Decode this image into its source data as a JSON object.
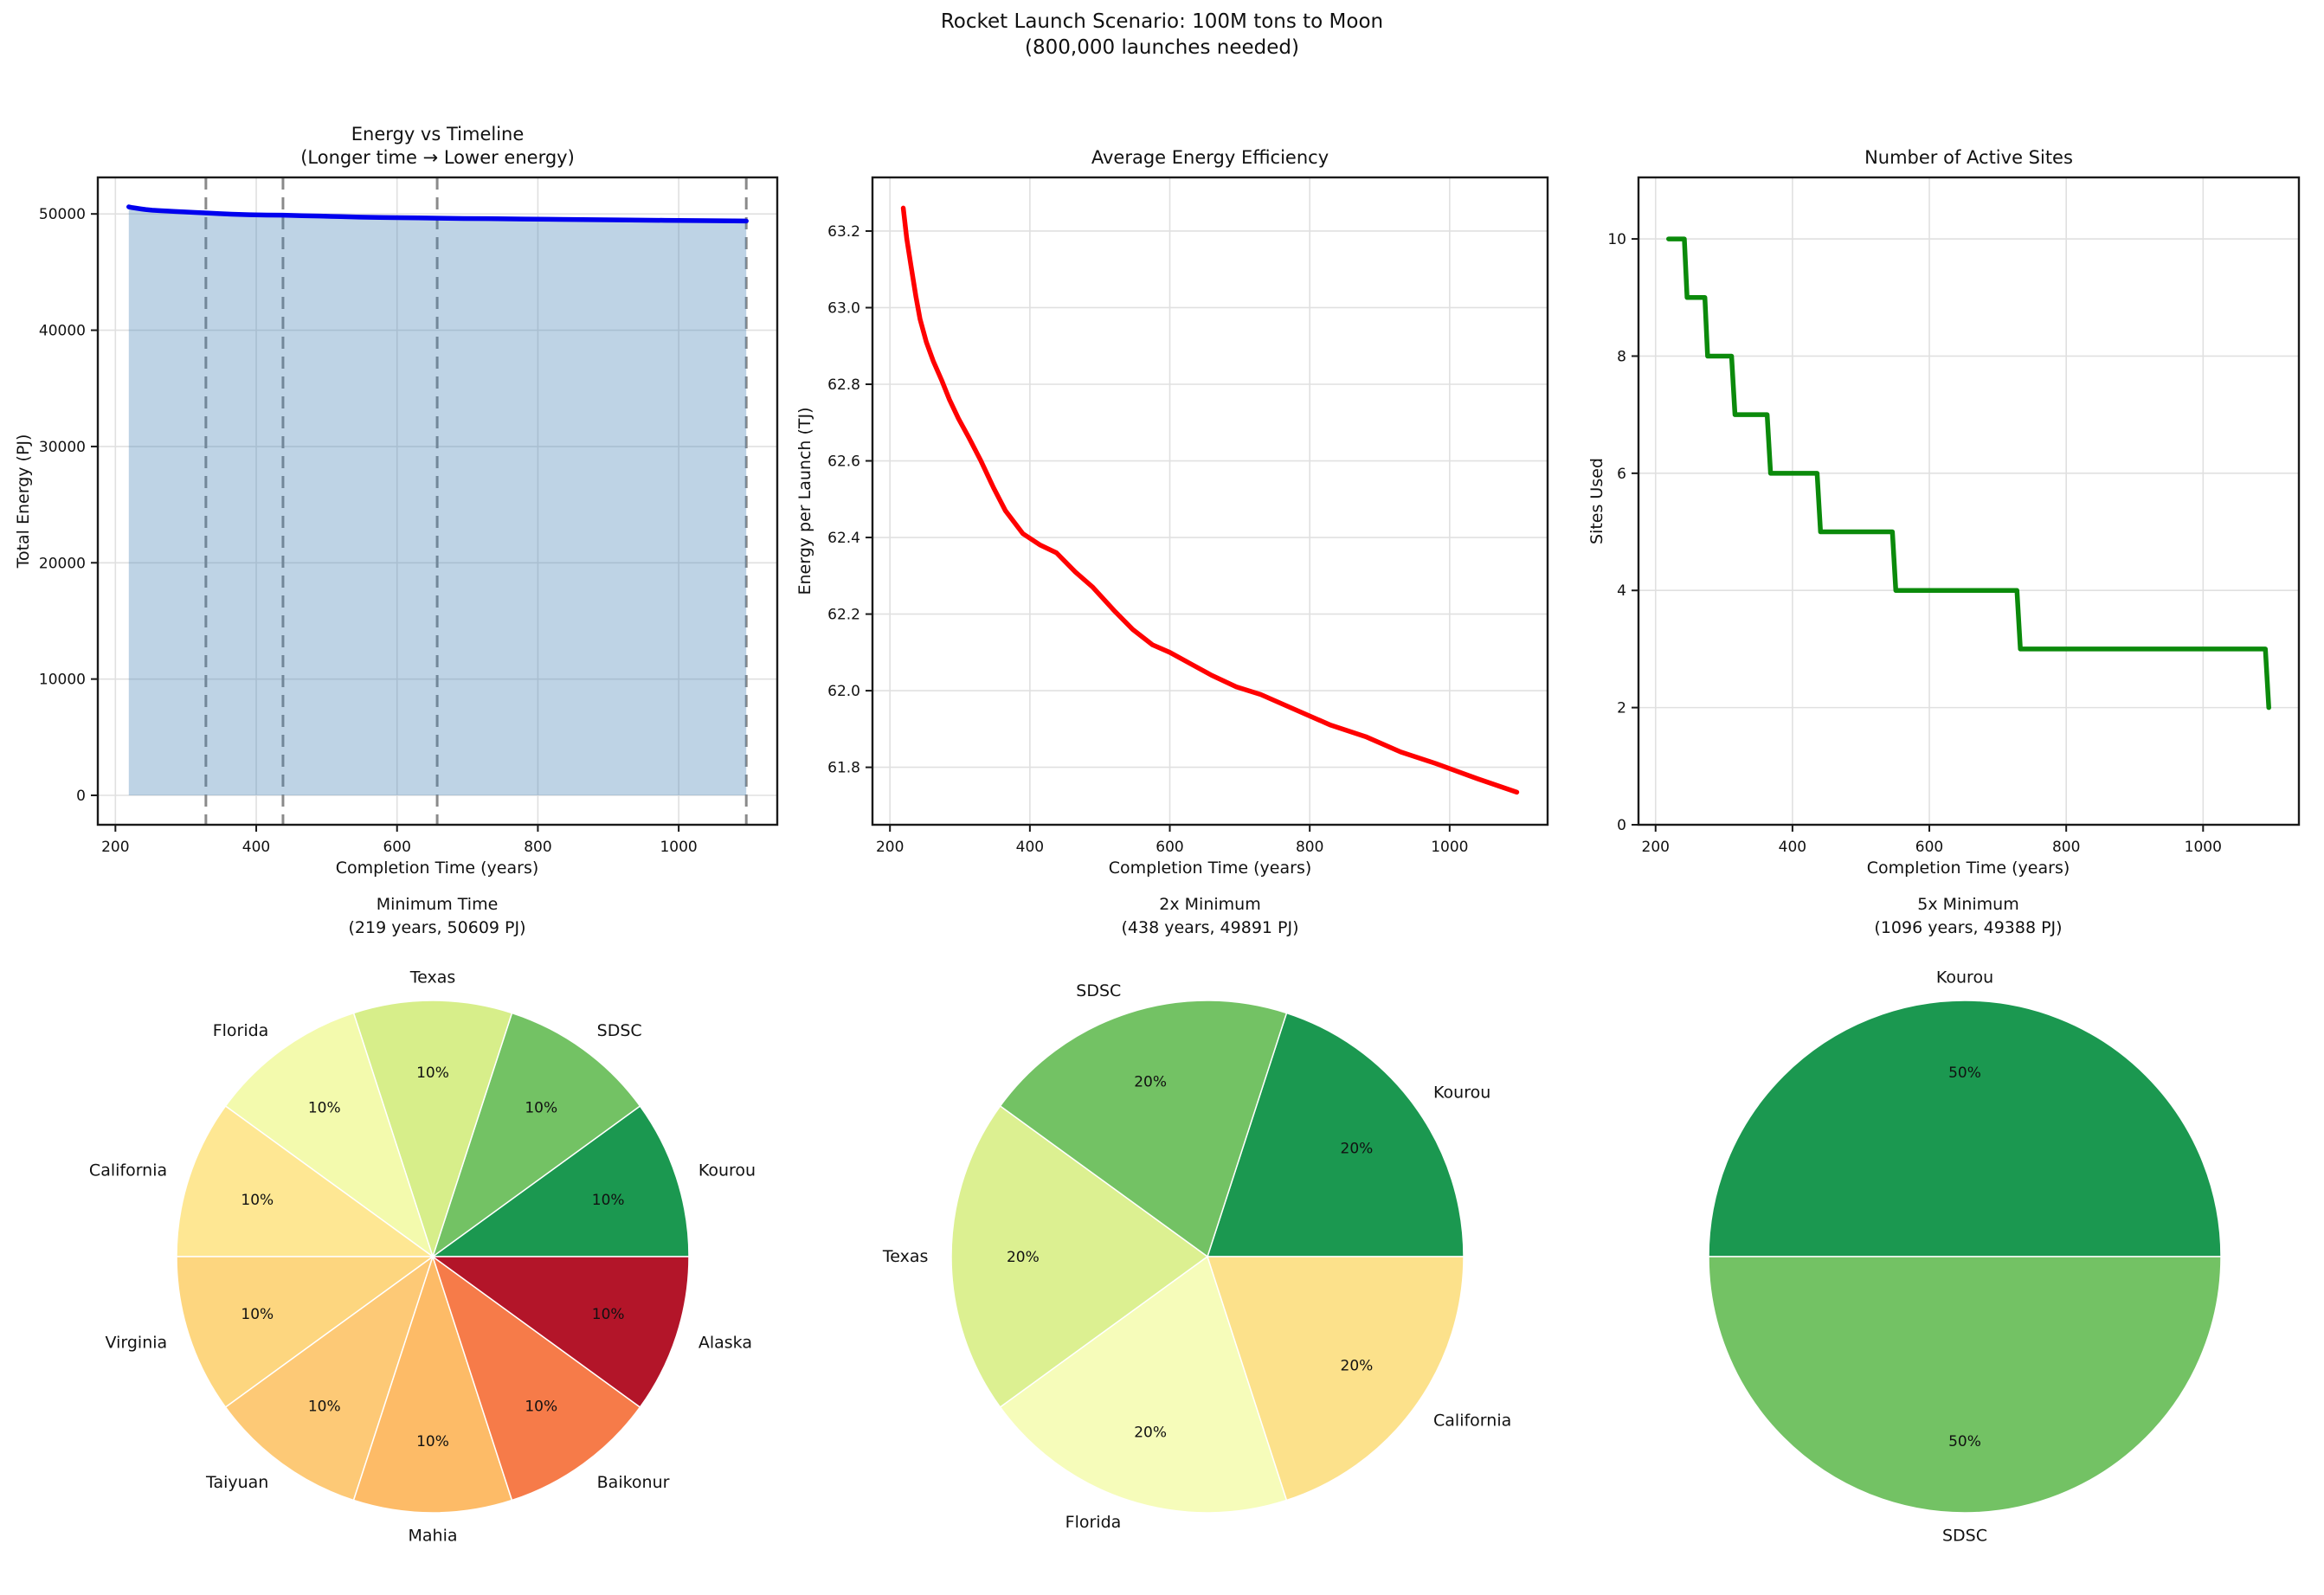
{
  "figure_title": {
    "line1": "Rocket Launch Scenario: 100M tons to Moon",
    "line2": "(800,000 launches needed)"
  },
  "charts": [
    {
      "title1": "Energy vs Timeline",
      "title2": "(Longer time → Lower energy)",
      "xlabel": "Completion Time (years)",
      "ylabel": "Total Energy (PJ)"
    },
    {
      "title1": "Average Energy Efficiency",
      "title2": "",
      "xlabel": "Completion Time (years)",
      "ylabel": "Energy per Launch (TJ)"
    },
    {
      "title1": "Number of Active Sites",
      "title2": "",
      "xlabel": "Completion Time (years)",
      "ylabel": "Sites Used"
    }
  ],
  "scenarios": [
    {
      "line1": "Minimum Time",
      "line2": "(219 years, 50609 PJ)"
    },
    {
      "line1": "2x Minimum",
      "line2": "(438 years, 49891 PJ)"
    },
    {
      "line1": "5x Minimum",
      "line2": "(1096 years, 49388 PJ)"
    }
  ],
  "chart_data": [
    {
      "type": "area",
      "title": "Energy vs Timeline (Longer time → Lower energy)",
      "xlabel": "Completion Time (years)",
      "ylabel": "Total Energy (PJ)",
      "xlim": [
        175,
        1140
      ],
      "ylim": [
        -2530,
        53140
      ],
      "xticks": [
        200,
        400,
        600,
        800,
        1000
      ],
      "xtick_labels": [
        "200",
        "400",
        "600",
        "800",
        "1000"
      ],
      "yticks": [
        0,
        10000,
        20000,
        30000,
        40000,
        50000
      ],
      "ytick_labels": [
        "0",
        "10000",
        "20000",
        "30000",
        "40000",
        "50000"
      ],
      "grid": true,
      "line_color": "#0000ee",
      "line_width": 5.5,
      "fill_color": "rgba(70,130,180,0.35)",
      "fill_baseline": 0,
      "vlines": [
        328.5,
        438,
        657,
        1096
      ],
      "vline_color": "#8a8a8a",
      "points": [
        [
          219,
          50609
        ],
        [
          224,
          50544
        ],
        [
          230,
          50488
        ],
        [
          237,
          50424
        ],
        [
          243,
          50376
        ],
        [
          252,
          50320
        ],
        [
          262,
          50280
        ],
        [
          274,
          50248
        ],
        [
          285,
          50208
        ],
        [
          298,
          50168
        ],
        [
          313,
          50128
        ],
        [
          330,
          50080
        ],
        [
          348,
          50024
        ],
        [
          365,
          49976
        ],
        [
          390,
          49928
        ],
        [
          415,
          49904
        ],
        [
          438,
          49891
        ],
        [
          465,
          49848
        ],
        [
          490,
          49816
        ],
        [
          520,
          49768
        ],
        [
          547,
          49728
        ],
        [
          575,
          49696
        ],
        [
          600,
          49680
        ],
        [
          630,
          49656
        ],
        [
          660,
          49632
        ],
        [
          695,
          49608
        ],
        [
          730,
          49592
        ],
        [
          780,
          49560
        ],
        [
          830,
          49528
        ],
        [
          880,
          49504
        ],
        [
          930,
          49472
        ],
        [
          980,
          49448
        ],
        [
          1040,
          49416
        ],
        [
          1096,
          49388
        ]
      ]
    },
    {
      "type": "line",
      "title": "Average Energy Efficiency",
      "xlabel": "Completion Time (years)",
      "ylabel": "Energy per Launch (TJ)",
      "xlim": [
        175,
        1140
      ],
      "ylim": [
        61.65,
        63.34
      ],
      "xticks": [
        200,
        400,
        600,
        800,
        1000
      ],
      "xtick_labels": [
        "200",
        "400",
        "600",
        "800",
        "1000"
      ],
      "yticks": [
        61.8,
        62.0,
        62.2,
        62.4,
        62.6,
        62.8,
        63.0,
        63.2
      ],
      "ytick_labels": [
        "61.8",
        "62.0",
        "62.2",
        "62.4",
        "62.6",
        "62.8",
        "63.0",
        "63.2"
      ],
      "grid": true,
      "line_color": "#ff0000",
      "line_width": 5.5,
      "points": [
        [
          219,
          63.26
        ],
        [
          224,
          63.18
        ],
        [
          230,
          63.11
        ],
        [
          237,
          63.03
        ],
        [
          243,
          62.97
        ],
        [
          252,
          62.91
        ],
        [
          262,
          62.86
        ],
        [
          274,
          62.81
        ],
        [
          285,
          62.76
        ],
        [
          298,
          62.71
        ],
        [
          313,
          62.66
        ],
        [
          330,
          62.6
        ],
        [
          348,
          62.53
        ],
        [
          365,
          62.47
        ],
        [
          390,
          62.41
        ],
        [
          415,
          62.38
        ],
        [
          438,
          62.36
        ],
        [
          465,
          62.31
        ],
        [
          490,
          62.27
        ],
        [
          520,
          62.21
        ],
        [
          547,
          62.16
        ],
        [
          575,
          62.12
        ],
        [
          600,
          62.1
        ],
        [
          630,
          62.07
        ],
        [
          660,
          62.04
        ],
        [
          695,
          62.01
        ],
        [
          730,
          61.99
        ],
        [
          780,
          61.95
        ],
        [
          830,
          61.91
        ],
        [
          880,
          61.88
        ],
        [
          930,
          61.84
        ],
        [
          980,
          61.81
        ],
        [
          1040,
          61.77
        ],
        [
          1096,
          61.735
        ]
      ]
    },
    {
      "type": "step",
      "title": "Number of Active Sites",
      "xlabel": "Completion Time (years)",
      "ylabel": "Sites Used",
      "xlim": [
        175,
        1140
      ],
      "ylim": [
        0,
        11.05
      ],
      "xticks": [
        200,
        400,
        600,
        800,
        1000
      ],
      "xtick_labels": [
        "200",
        "400",
        "600",
        "800",
        "1000"
      ],
      "yticks": [
        0,
        2,
        4,
        6,
        8,
        10
      ],
      "ytick_labels": [
        "0",
        "2",
        "4",
        "6",
        "8",
        "10"
      ],
      "grid": true,
      "line_color": "#0b8a0b",
      "line_width": 5.5,
      "points": [
        [
          219,
          10
        ],
        [
          242,
          10
        ],
        [
          246,
          9
        ],
        [
          272,
          9
        ],
        [
          276,
          8
        ],
        [
          311,
          8
        ],
        [
          316,
          7
        ],
        [
          363,
          7
        ],
        [
          368,
          6
        ],
        [
          436,
          6
        ],
        [
          441,
          5
        ],
        [
          546,
          5
        ],
        [
          551,
          4
        ],
        [
          728,
          4
        ],
        [
          733,
          3
        ],
        [
          1091,
          3
        ],
        [
          1096,
          2
        ]
      ]
    },
    {
      "type": "pie",
      "title": "Minimum Time (219 years, 50609 PJ)",
      "slices": [
        {
          "label": "Kourou",
          "value": 10,
          "pct_label": "10%",
          "color": "#1b9850"
        },
        {
          "label": "SDSC",
          "value": 10,
          "pct_label": "10%",
          "color": "#73c264"
        },
        {
          "label": "Texas",
          "value": 10,
          "pct_label": "10%",
          "color": "#d7ee8a"
        },
        {
          "label": "Florida",
          "value": 10,
          "pct_label": "10%",
          "color": "#f3faad"
        },
        {
          "label": "California",
          "value": 10,
          "pct_label": "10%",
          "color": "#fee793"
        },
        {
          "label": "Virginia",
          "value": 10,
          "pct_label": "10%",
          "color": "#fdd67f"
        },
        {
          "label": "Taiyuan",
          "value": 10,
          "pct_label": "10%",
          "color": "#fdc976"
        },
        {
          "label": "Mahia",
          "value": 10,
          "pct_label": "10%",
          "color": "#fdbb67"
        },
        {
          "label": "Baikonur",
          "value": 10,
          "pct_label": "10%",
          "color": "#f67b49"
        },
        {
          "label": "Alaska",
          "value": 10,
          "pct_label": "10%",
          "color": "#b31529"
        }
      ]
    },
    {
      "type": "pie",
      "title": "2x Minimum (438 years, 49891 PJ)",
      "slices": [
        {
          "label": "Kourou",
          "value": 20,
          "pct_label": "20%",
          "color": "#1b9850"
        },
        {
          "label": "SDSC",
          "value": 20,
          "pct_label": "20%",
          "color": "#73c264"
        },
        {
          "label": "Texas",
          "value": 20,
          "pct_label": "20%",
          "color": "#dcf091"
        },
        {
          "label": "Florida",
          "value": 20,
          "pct_label": "20%",
          "color": "#f6fcba"
        },
        {
          "label": "California",
          "value": 20,
          "pct_label": "20%",
          "color": "#fce18b"
        }
      ]
    },
    {
      "type": "pie",
      "title": "5x Minimum (1096 years, 49388 PJ)",
      "slices": [
        {
          "label": "Kourou",
          "value": 50,
          "pct_label": "50%",
          "color": "#1b9850"
        },
        {
          "label": "SDSC",
          "value": 50,
          "pct_label": "50%",
          "color": "#73c264"
        }
      ]
    }
  ],
  "style": {
    "grid_color": "#e0e0e0",
    "spine_color": "#1a1a1a",
    "tick_color": "#1a1a1a",
    "pie_edge_color": "#ffffff"
  }
}
